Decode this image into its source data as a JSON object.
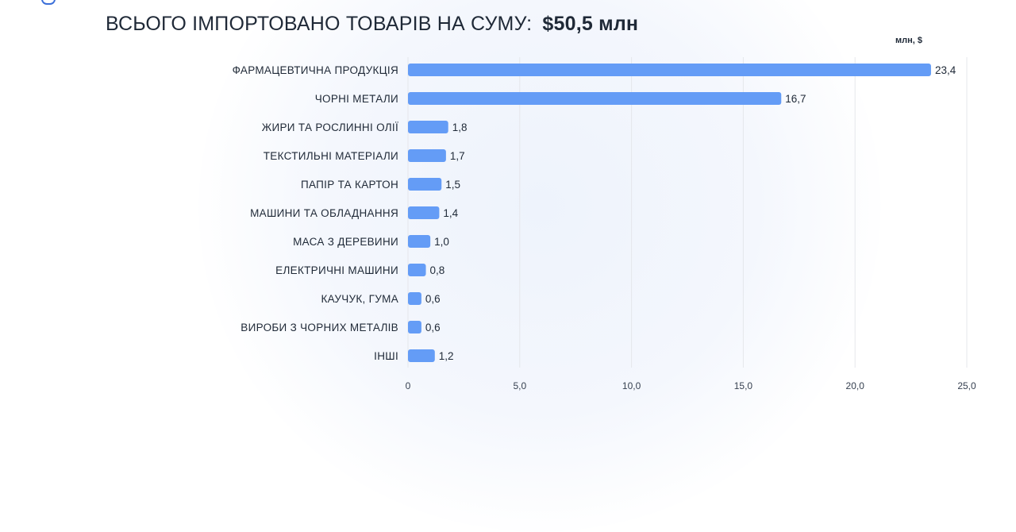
{
  "header": {
    "title": "ВСЬОГО ІМПОРТОВАНО ТОВАРІВ НА СУМУ:",
    "total": "$50,5 млн"
  },
  "chart_data": {
    "type": "bar",
    "orientation": "horizontal",
    "unit_label": "млн, $",
    "categories": [
      "ФАРМАЦЕВТИЧНА ПРОДУКЦІЯ",
      "ЧОРНІ МЕТАЛИ",
      "ЖИРИ ТА РОСЛИННІ ОЛІЇ",
      "ТЕКСТИЛЬНІ МАТЕРІАЛИ",
      "ПАПІР ТА КАРТОН",
      "МАШИНИ ТА ОБЛАДНАННЯ",
      "МАСА З ДЕРЕВИНИ",
      "ЕЛЕКТРИЧНІ МАШИНИ",
      "КАУЧУК, ГУМА",
      "ВИРОБИ З ЧОРНИХ МЕТАЛІВ",
      "ІНШІ"
    ],
    "values": [
      23.4,
      16.7,
      1.8,
      1.7,
      1.5,
      1.4,
      1.0,
      0.8,
      0.6,
      0.6,
      1.2
    ],
    "value_labels": [
      "23,4",
      "16,7",
      "1,8",
      "1,7",
      "1,5",
      "1,4",
      "1,0",
      "0,8",
      "0,6",
      "0,6",
      "1,2"
    ],
    "xlim": [
      0,
      25
    ],
    "xticks": [
      0,
      5,
      10,
      15,
      20,
      25
    ],
    "xtick_labels": [
      "0",
      "5,0",
      "10,0",
      "15,0",
      "20,0",
      "25,0"
    ],
    "grid": true,
    "bar_color": "#649cf6",
    "grid_color": "#e5e7eb"
  }
}
